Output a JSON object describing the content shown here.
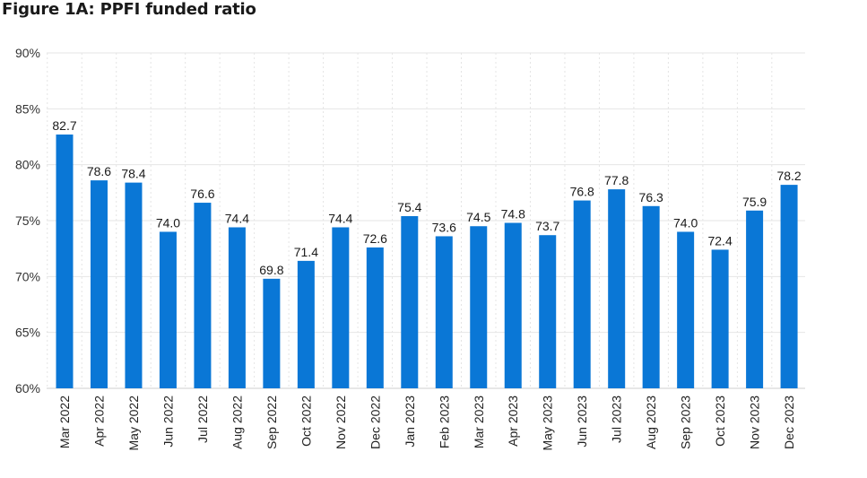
{
  "chart_data": {
    "type": "bar",
    "title": "Figure 1A: PPFI funded ratio",
    "xlabel": "",
    "ylabel": "",
    "ylim": [
      60,
      90
    ],
    "yticks": [
      "60%",
      "65%",
      "70%",
      "75%",
      "80%",
      "85%",
      "90%"
    ],
    "ytick_values": [
      60,
      65,
      70,
      75,
      80,
      85,
      90
    ],
    "grid": true,
    "bar_color": "#0a77d6",
    "categories": [
      "Mar 2022",
      "Apr 2022",
      "May 2022",
      "Jun 2022",
      "Jul 2022",
      "Aug 2022",
      "Sep 2022",
      "Oct 2022",
      "Nov 2022",
      "Dec 2022",
      "Jan 2023",
      "Feb 2023",
      "Mar 2023",
      "Apr 2023",
      "May 2023",
      "Jun 2023",
      "Jul 2023",
      "Aug 2023",
      "Sep 2023",
      "Oct 2023",
      "Nov 2023",
      "Dec 2023"
    ],
    "values": [
      82.7,
      78.6,
      78.4,
      74.0,
      76.6,
      74.4,
      69.8,
      71.4,
      74.4,
      72.6,
      75.4,
      73.6,
      74.5,
      74.8,
      73.7,
      76.8,
      77.8,
      76.3,
      74.0,
      72.4,
      75.9,
      78.2
    ],
    "value_labels": [
      "82.7",
      "78.6",
      "78.4",
      "74.0",
      "76.6",
      "74.4",
      "69.8",
      "71.4",
      "74.4",
      "72.6",
      "75.4",
      "73.6",
      "74.5",
      "74.8",
      "73.7",
      "76.8",
      "77.8",
      "76.3",
      "74.0",
      "72.4",
      "75.9",
      "78.2"
    ]
  }
}
